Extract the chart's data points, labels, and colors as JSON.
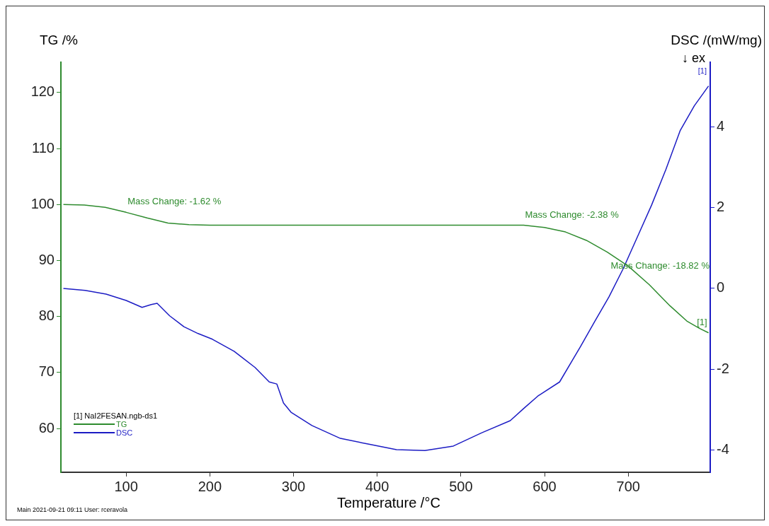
{
  "chart_data": {
    "type": "line",
    "xlabel": "Temperature /°C",
    "ylabel": "TG /%",
    "y2label": "DSC /(mW/mg)",
    "legend_title": "[1] NaI2FESAN.ngb-ds1",
    "legend": "bottom left",
    "grid": false,
    "marker": "none",
    "line_style": "solid",
    "xlim": [
      22,
      798
    ],
    "xticks": [
      100,
      200,
      300,
      400,
      500,
      600,
      700
    ],
    "ylim": [
      52.2,
      125.4
    ],
    "yticks": [
      60,
      70,
      80,
      90,
      100,
      110,
      120
    ],
    "y2lim": [
      -4.56,
      5.61
    ],
    "y2ticks": [
      -4,
      -2,
      0,
      2,
      4
    ],
    "series": [
      {
        "name": "TG",
        "color": "#2e8b2e",
        "x": [
          25,
          50,
          75,
          100,
          125,
          150,
          175,
          200,
          300,
          400,
          500,
          575,
          600,
          625,
          650,
          675,
          700,
          725,
          750,
          770,
          785,
          796
        ],
        "values": [
          100.0,
          99.9,
          99.5,
          98.6,
          97.6,
          96.7,
          96.4,
          96.3,
          96.3,
          96.3,
          96.3,
          96.3,
          95.9,
          95.1,
          93.6,
          91.5,
          89.0,
          85.7,
          81.9,
          79.2,
          77.9,
          77.1
        ]
      },
      {
        "name": "DSC",
        "color": "#1c1cc4",
        "axis": "y2",
        "x": [
          25,
          51,
          76,
          100,
          119,
          130,
          137,
          152,
          169,
          186,
          203,
          229,
          254,
          271,
          280,
          288,
          297,
          322,
          356,
          389,
          423,
          457,
          491,
          525,
          559,
          575,
          592,
          618,
          643,
          660,
          677,
          694,
          711,
          728,
          745,
          762,
          779,
          796
        ],
        "values": [
          0.0,
          -0.05,
          -0.14,
          -0.3,
          -0.47,
          -0.4,
          -0.37,
          -0.68,
          -0.95,
          -1.12,
          -1.26,
          -1.56,
          -1.96,
          -2.32,
          -2.37,
          -2.84,
          -3.07,
          -3.4,
          -3.72,
          -3.86,
          -4.0,
          -4.02,
          -3.91,
          -3.58,
          -3.28,
          -2.98,
          -2.67,
          -2.32,
          -1.44,
          -0.82,
          -0.21,
          0.49,
          1.28,
          2.07,
          2.95,
          3.91,
          4.53,
          5.02
        ]
      }
    ],
    "annotations": [
      {
        "text": "Mass Change: -1.62 %",
        "x": 100,
        "y": 98.6
      },
      {
        "text": "Mass Change: -2.38 %",
        "x": 575,
        "y": 96.3
      },
      "Mass Change: -18.82 %",
      {
        "text": "[1]",
        "x": 796,
        "y": 77.1
      },
      "[1]",
      "↓ ex",
      "Main   2021-09-21 09:11   User: rceravola"
    ]
  }
}
